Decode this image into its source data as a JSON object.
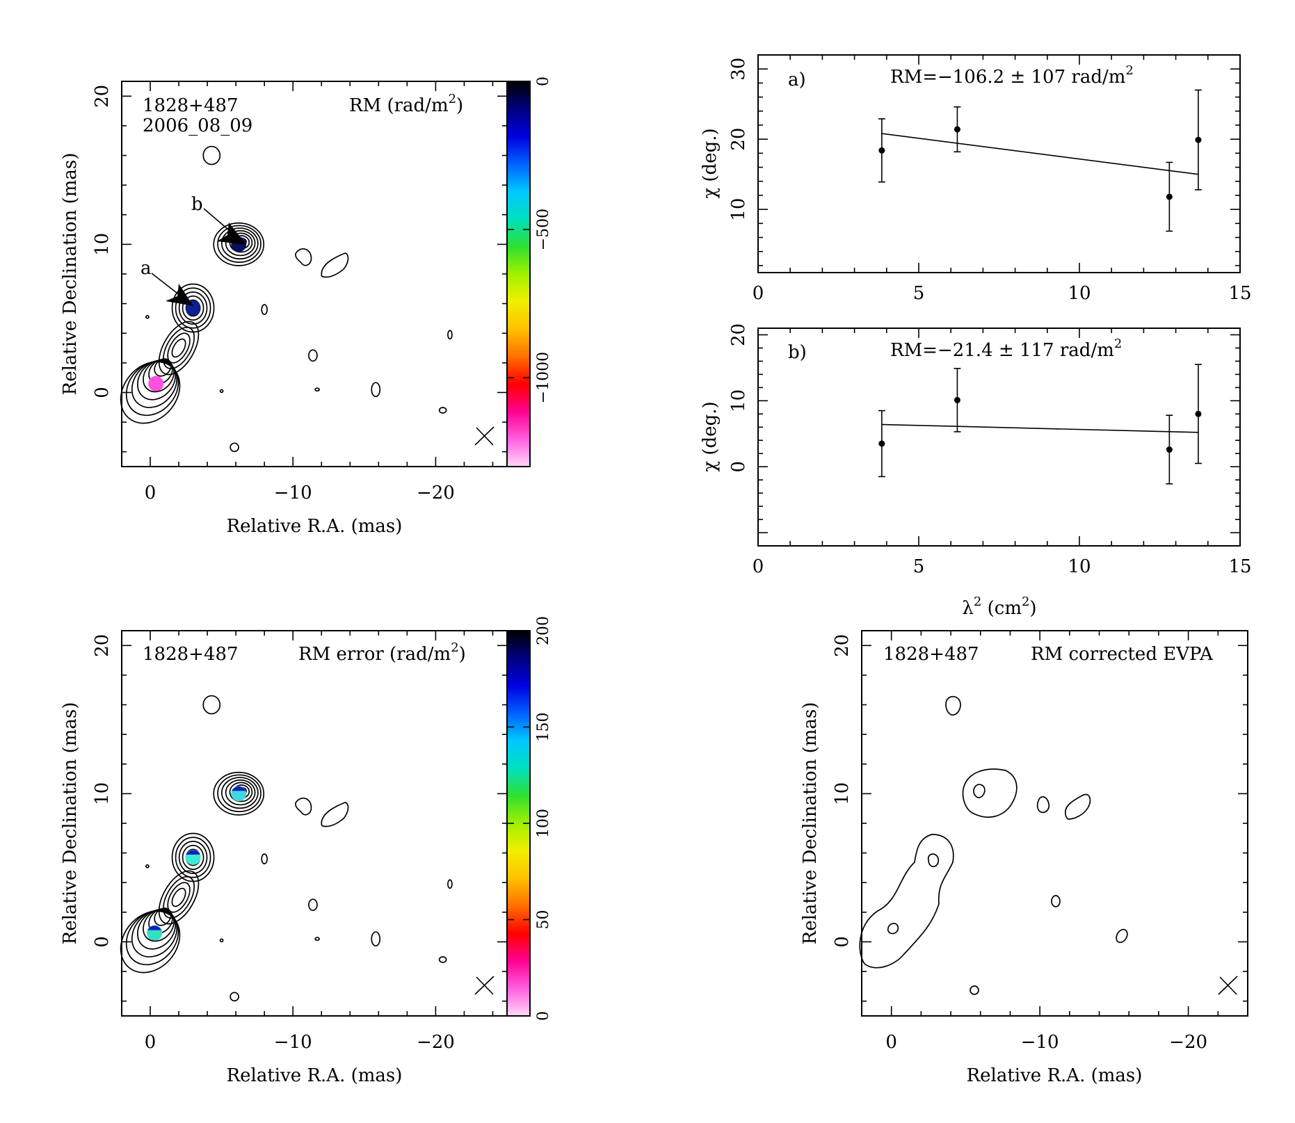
{
  "chart_data": [
    {
      "id": "rm_map",
      "type": "heatmap",
      "source": "1828+487",
      "epoch": "2006_08_09",
      "quantity_label": "RM (rad/m",
      "quantity_sup": "2",
      "quantity_close": ")",
      "xlabel": "Relative R.A. (mas)",
      "ylabel": "Relative Declination (mas)",
      "xlim": [
        2,
        -25
      ],
      "ylim": [
        -5,
        21
      ],
      "xticks": [
        0,
        -10,
        -20
      ],
      "yticks": [
        0,
        10,
        20
      ],
      "colorbar": {
        "range": [
          -1300,
          0
        ],
        "ticks": [
          0,
          -500,
          -1000
        ],
        "colors": [
          "#ffd8f8",
          "#ff60e0",
          "#ff0090",
          "#ff0000",
          "#ff7000",
          "#ffc000",
          "#f0f000",
          "#a0f000",
          "#30e030",
          "#00e0c0",
          "#00c8ff",
          "#0060ff",
          "#0000e0",
          "#000080",
          "#000000"
        ]
      },
      "components": [
        {
          "label": "a",
          "x": -3.0,
          "y": 5.7,
          "rm_color": "#102090"
        },
        {
          "label": "b",
          "x": -6.2,
          "y": 10.0,
          "rm_color": "#081060"
        },
        {
          "label": "",
          "x": -0.4,
          "y": 0.6,
          "rm_color": "#ff50e0"
        }
      ]
    },
    {
      "id": "fit_a",
      "type": "scatter",
      "panel_label": "a)",
      "annotation": "RM=−106.2 ± 107 rad/m",
      "annotation_sup": "2",
      "ylabel": "χ (deg.)",
      "xlim": [
        0,
        15
      ],
      "ylim": [
        1,
        32
      ],
      "xticks": [
        0,
        5,
        10,
        15
      ],
      "yticks": [
        10,
        20,
        30
      ],
      "points": [
        {
          "x": 3.85,
          "y": 18.4,
          "err": 4.5
        },
        {
          "x": 6.2,
          "y": 21.4,
          "err": 3.2
        },
        {
          "x": 12.8,
          "y": 11.8,
          "err": 4.9
        },
        {
          "x": 13.7,
          "y": 19.9,
          "err": 7.1
        }
      ],
      "fit": {
        "x": [
          3.85,
          13.7
        ],
        "y": [
          20.8,
          15.0
        ]
      }
    },
    {
      "id": "fit_b",
      "type": "scatter",
      "panel_label": "b)",
      "annotation": "RM=−21.4 ± 117 rad/m",
      "annotation_sup": "2",
      "ylabel": "χ (deg.)",
      "xlabel": "λ",
      "xlabel_sup": "2",
      "xlabel_rest": " (cm",
      "xlabel_rest_sup": "2",
      "xlabel_close": ")",
      "xlim": [
        0,
        15
      ],
      "ylim": [
        -12,
        21
      ],
      "xticks": [
        0,
        5,
        10,
        15
      ],
      "yticks": [
        0,
        10,
        20
      ],
      "points": [
        {
          "x": 3.85,
          "y": 3.5,
          "err": 5.0
        },
        {
          "x": 6.2,
          "y": 10.1,
          "err": 4.8
        },
        {
          "x": 12.8,
          "y": 2.6,
          "err": 5.2
        },
        {
          "x": 13.7,
          "y": 8.0,
          "err": 7.5
        }
      ],
      "fit": {
        "x": [
          3.85,
          13.7
        ],
        "y": [
          6.4,
          5.2
        ]
      }
    },
    {
      "id": "rm_error_map",
      "type": "heatmap",
      "source": "1828+487",
      "quantity_label": "RM error (rad/m",
      "quantity_sup": "2",
      "quantity_close": ")",
      "xlabel": "Relative R.A. (mas)",
      "ylabel": "Relative Declination (mas)",
      "xlim": [
        2,
        -25
      ],
      "ylim": [
        -5,
        21
      ],
      "xticks": [
        0,
        -10,
        -20
      ],
      "yticks": [
        0,
        10,
        20
      ],
      "colorbar": {
        "range": [
          0,
          200
        ],
        "ticks": [
          0,
          50,
          100,
          150,
          200
        ],
        "colors": [
          "#ffd8f8",
          "#ff60e0",
          "#ff0090",
          "#ff0000",
          "#ff7000",
          "#ffc000",
          "#f0f000",
          "#a0f000",
          "#30e030",
          "#00e0c0",
          "#00c8ff",
          "#0060ff",
          "#0000e0",
          "#000080",
          "#000000"
        ]
      },
      "components": [
        {
          "x": -3.0,
          "y": 5.7,
          "err_color": "#40e8d8"
        },
        {
          "x": -6.2,
          "y": 10.0,
          "err_color": "#40d8e0"
        },
        {
          "x": -0.3,
          "y": 0.6,
          "err_color": "#30e0c0"
        }
      ]
    },
    {
      "id": "evpa_map",
      "type": "heatmap",
      "source": "1828+487",
      "quantity_label": "RM corrected EVPA",
      "xlabel": "Relative R.A. (mas)",
      "ylabel": "Relative Declination (mas)",
      "xlim": [
        2,
        -24
      ],
      "ylim": [
        -5,
        21
      ],
      "xticks": [
        0,
        -10,
        -20
      ],
      "yticks": [
        0,
        10,
        20
      ]
    }
  ]
}
